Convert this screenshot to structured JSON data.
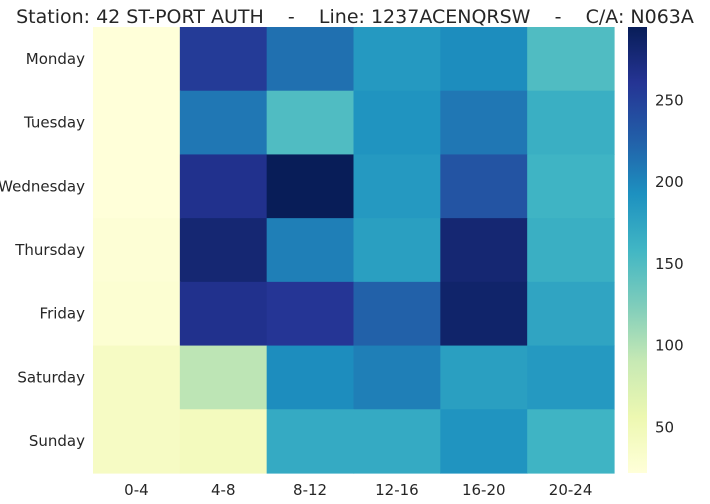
{
  "chart_data": {
    "type": "heatmap",
    "title": "Station: 42 ST-PORT AUTH    -    Line: 1237ACENQRSW    -    C/A: N063A",
    "xlabel": "",
    "ylabel": "",
    "x_categories": [
      "0-4",
      "4-8",
      "8-12",
      "12-16",
      "16-20",
      "20-24"
    ],
    "y_categories": [
      "Monday",
      "Tuesday",
      "Wednesday",
      "Thursday",
      "Friday",
      "Saturday",
      "Sunday"
    ],
    "values": [
      [
        22,
        255,
        215,
        185,
        195,
        150
      ],
      [
        22,
        210,
        150,
        190,
        210,
        165
      ],
      [
        22,
        265,
        295,
        185,
        235,
        160
      ],
      [
        25,
        280,
        205,
        180,
        280,
        165
      ],
      [
        28,
        265,
        260,
        225,
        285,
        175
      ],
      [
        40,
        95,
        195,
        205,
        180,
        185
      ],
      [
        40,
        45,
        170,
        170,
        190,
        160
      ]
    ],
    "colorbar": {
      "min": 22,
      "max": 295,
      "ticks": [
        50,
        100,
        150,
        200,
        250
      ],
      "colormap": "YlGnBu"
    },
    "grid": false,
    "legend": "colorbar-right"
  }
}
